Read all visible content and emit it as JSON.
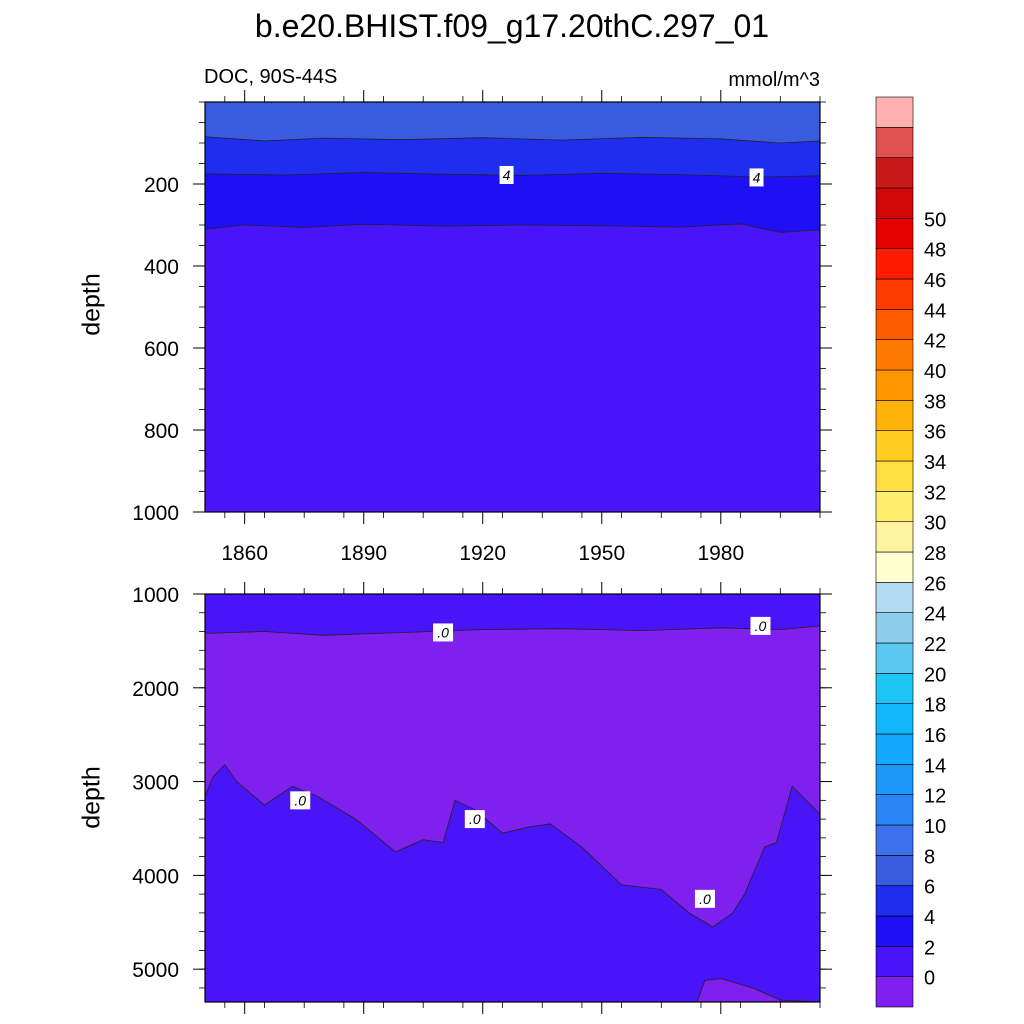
{
  "title": "b.e20.BHIST.f09_g17.20thC.297_01",
  "panel_left_label": "DOC, 90S-44S",
  "panel_right_label": "mmol/m^3",
  "colors": {
    "band_lt0": "#7f20ee",
    "band_0_2": "#4a14f8",
    "band_2_4": "#1e0ff5",
    "band_4_6": "#1f2eee",
    "band_6_8": "#3a5ae0",
    "colorbar": [
      "#7f20ee",
      "#4a14f8",
      "#1e0ff5",
      "#1f2eee",
      "#3a5ae0",
      "#3c70ee",
      "#2a86f5",
      "#1c98fa",
      "#14a8fc",
      "#12b6fb",
      "#1ec4f4",
      "#5ac8f0",
      "#8ecdec",
      "#b3dcf2",
      "#ffffd0",
      "#fff3a0",
      "#ffee70",
      "#ffe040",
      "#ffcc22",
      "#ffb20a",
      "#ff9600",
      "#ff7a00",
      "#ff5a00",
      "#ff3a00",
      "#ff1a00",
      "#e80000",
      "#d20808",
      "#c81818",
      "#e05050",
      "#ffb0b0"
    ]
  },
  "chart_data": [
    {
      "type": "contour",
      "panel": "upper",
      "xlim": [
        1850,
        2005
      ],
      "ylim": [
        1000,
        0
      ],
      "ylabel": "depth",
      "x_ticks": [
        1860,
        1890,
        1920,
        1950,
        1980
      ],
      "y_ticks": [
        200,
        400,
        600,
        800,
        1000
      ],
      "contour_lines": [
        {
          "level": "6",
          "x": [
            1850,
            1865,
            1880,
            1900,
            1920,
            1940,
            1960,
            1980,
            1995,
            2005
          ],
          "depth": [
            85,
            95,
            88,
            92,
            87,
            93,
            86,
            90,
            100,
            95
          ]
        },
        {
          "level": "4",
          "x": [
            1850,
            1870,
            1890,
            1910,
            1930,
            1950,
            1970,
            1990,
            2005
          ],
          "depth": [
            175,
            178,
            172,
            176,
            179,
            174,
            177,
            183,
            180
          ]
        },
        {
          "level": "2",
          "x": [
            1850,
            1860,
            1875,
            1890,
            1910,
            1930,
            1950,
            1970,
            1985,
            1995,
            2005
          ],
          "depth": [
            310,
            300,
            306,
            298,
            303,
            300,
            302,
            305,
            297,
            318,
            312
          ]
        }
      ],
      "contour_labels": [
        {
          "text": "4",
          "x": 1926,
          "depth": 178
        },
        {
          "text": "4",
          "x": 1989,
          "depth": 184
        }
      ]
    },
    {
      "type": "contour",
      "panel": "lower",
      "xlim": [
        1850,
        2005
      ],
      "ylim": [
        5350,
        1000
      ],
      "ylabel": "depth",
      "y_ticks": [
        1000,
        2000,
        3000,
        4000,
        5000
      ],
      "contour_lines": [
        {
          "level": ".0",
          "x": [
            1850,
            1865,
            1880,
            1900,
            1920,
            1940,
            1960,
            1980,
            1995,
            2005
          ],
          "depth": [
            1420,
            1400,
            1440,
            1410,
            1380,
            1370,
            1390,
            1360,
            1380,
            1340
          ]
        },
        {
          "level": ".0",
          "x": [
            1850,
            1852,
            1855,
            1858,
            1865,
            1872,
            1878,
            1888,
            1898,
            1905,
            1910,
            1913,
            1918,
            1925,
            1932,
            1937,
            1945,
            1955,
            1965,
            1972,
            1978,
            1983,
            1986,
            1991,
            1994,
            1998,
            2005
          ],
          "depth": [
            3160,
            2950,
            2820,
            3000,
            3250,
            3050,
            3150,
            3400,
            3750,
            3620,
            3650,
            3200,
            3300,
            3550,
            3480,
            3450,
            3700,
            4100,
            4150,
            4400,
            4550,
            4400,
            4200,
            3700,
            3650,
            3050,
            3350
          ]
        },
        {
          "level": ".0",
          "x": [
            1974,
            1976,
            1980,
            1988,
            1995,
            2005
          ],
          "depth": [
            5350,
            5120,
            5100,
            5200,
            5330,
            5350
          ]
        }
      ],
      "contour_labels": [
        {
          "text": ".0",
          "x": 1910,
          "depth": 1410
        },
        {
          "text": ".0",
          "x": 1990,
          "depth": 1340
        },
        {
          "text": ".0",
          "x": 1874,
          "depth": 3200
        },
        {
          "text": ".0",
          "x": 1918,
          "depth": 3400
        },
        {
          "text": ".0",
          "x": 1976,
          "depth": 4250
        }
      ]
    },
    {
      "type": "colorbar",
      "labels": [
        "0",
        "2",
        "4",
        "6",
        "8",
        "10",
        "12",
        "14",
        "16",
        "18",
        "20",
        "22",
        "24",
        "26",
        "28",
        "30",
        "32",
        "34",
        "36",
        "38",
        "40",
        "42",
        "44",
        "46",
        "48",
        "50"
      ]
    }
  ]
}
